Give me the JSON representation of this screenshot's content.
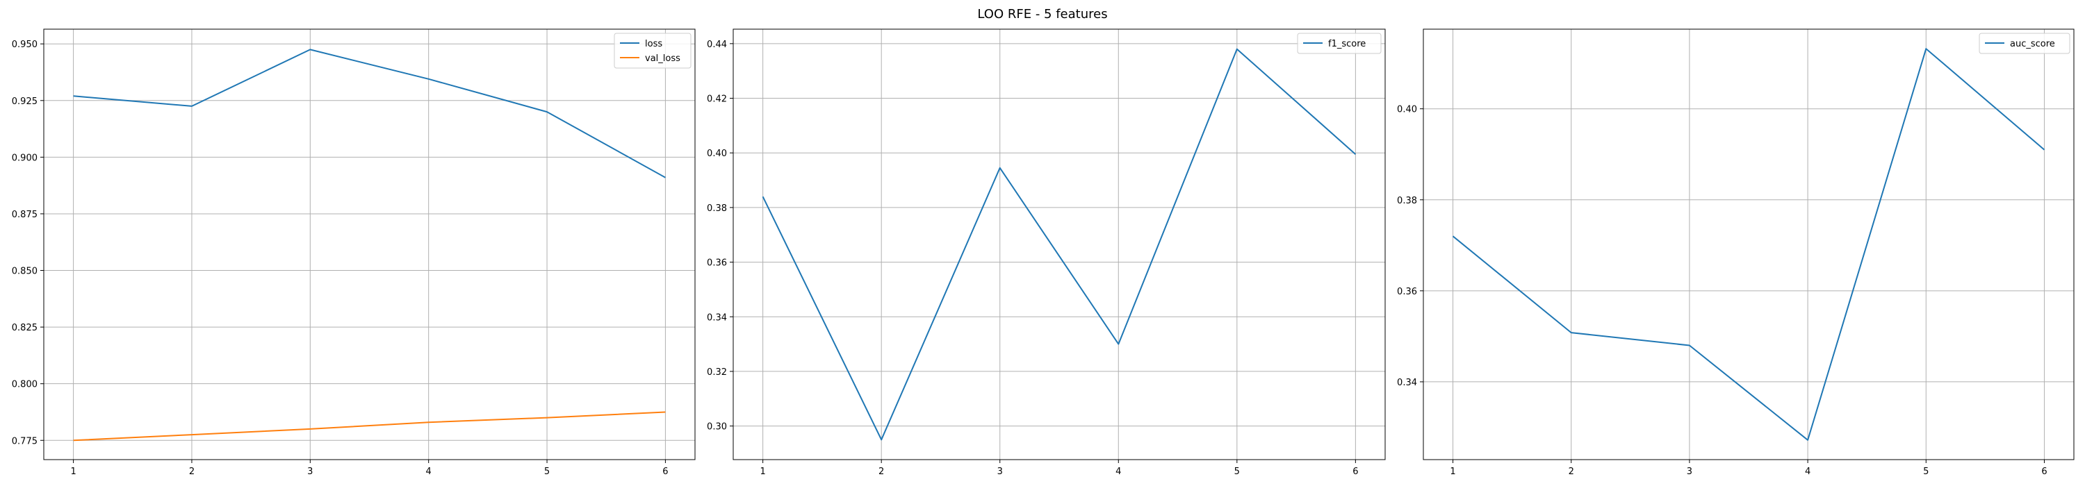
{
  "figure": {
    "suptitle": "LOO RFE - 5 features"
  },
  "chart_data": [
    {
      "type": "line",
      "x": [
        1,
        2,
        3,
        4,
        5,
        6
      ],
      "series": [
        {
          "name": "loss",
          "values": [
            0.927,
            0.9225,
            0.9475,
            0.9345,
            0.92,
            0.891
          ],
          "color": "#1f77b4"
        },
        {
          "name": "val_loss",
          "values": [
            0.775,
            0.7775,
            0.78,
            0.783,
            0.785,
            0.7875
          ],
          "color": "#ff7f0e"
        }
      ],
      "xticks": [
        1,
        2,
        3,
        4,
        5,
        6
      ],
      "yticks": [
        0.775,
        0.8,
        0.825,
        0.85,
        0.875,
        0.9,
        0.925,
        0.95
      ],
      "ytick_labels": [
        "0.775",
        "0.800",
        "0.825",
        "0.850",
        "0.875",
        "0.900",
        "0.925",
        "0.950"
      ],
      "xlim": [
        0.75,
        6.25
      ],
      "ylim": [
        0.7665,
        0.9565
      ],
      "grid": true,
      "legend": "upper right"
    },
    {
      "type": "line",
      "x": [
        1,
        2,
        3,
        4,
        5,
        6
      ],
      "series": [
        {
          "name": "f1_score",
          "values": [
            0.384,
            0.295,
            0.3945,
            0.33,
            0.438,
            0.3995
          ],
          "color": "#1f77b4"
        }
      ],
      "xticks": [
        1,
        2,
        3,
        4,
        5,
        6
      ],
      "yticks": [
        0.3,
        0.32,
        0.34,
        0.36,
        0.38,
        0.4,
        0.42,
        0.44
      ],
      "ytick_labels": [
        "0.30",
        "0.32",
        "0.34",
        "0.36",
        "0.38",
        "0.40",
        "0.42",
        "0.44"
      ],
      "xlim": [
        0.75,
        6.25
      ],
      "ylim": [
        0.2877,
        0.4453
      ],
      "grid": true,
      "legend": "upper right"
    },
    {
      "type": "line",
      "x": [
        1,
        2,
        3,
        4,
        5,
        6
      ],
      "series": [
        {
          "name": "auc_score",
          "values": [
            0.372,
            0.3508,
            0.348,
            0.3272,
            0.4132,
            0.391
          ],
          "color": "#1f77b4"
        }
      ],
      "xticks": [
        1,
        2,
        3,
        4,
        5,
        6
      ],
      "yticks": [
        0.34,
        0.36,
        0.38,
        0.4
      ],
      "ytick_labels": [
        "0.34",
        "0.36",
        "0.38",
        "0.40"
      ],
      "xlim": [
        0.75,
        6.25
      ],
      "ylim": [
        0.3229,
        0.4175
      ],
      "grid": true,
      "legend": "upper right"
    }
  ]
}
